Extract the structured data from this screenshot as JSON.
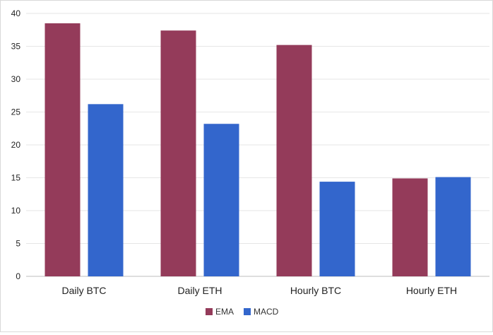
{
  "chart_data": {
    "type": "bar",
    "title": "",
    "xlabel": "",
    "ylabel": "",
    "categories": [
      "Daily BTC",
      "Daily ETH",
      "Hourly BTC",
      "Hourly ETH"
    ],
    "series": [
      {
        "name": "EMA",
        "color": "#943b5a",
        "values": [
          38.5,
          37.4,
          35.2,
          14.9
        ]
      },
      {
        "name": "MACD",
        "color": "#3366cc",
        "values": [
          26.2,
          23.2,
          14.4,
          15.1
        ]
      }
    ],
    "ylim": [
      0,
      40
    ],
    "yticks": [
      "0",
      "5",
      "10",
      "15",
      "20",
      "25",
      "30",
      "35",
      "40"
    ],
    "grid": true,
    "legend": "bottom-center"
  }
}
